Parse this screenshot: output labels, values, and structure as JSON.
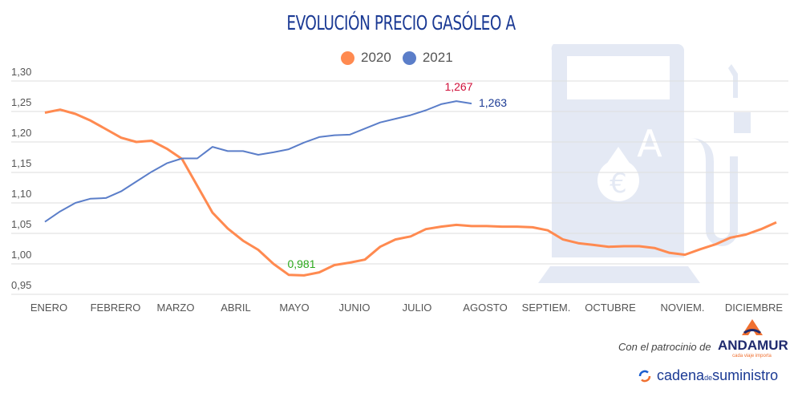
{
  "chart_data": {
    "type": "line",
    "title": "EVOLUCIÓN PRECIO GASÓLEO A",
    "x_tick_labels": [
      "ENERO",
      "FEBRERO",
      "MARZO",
      "ABRIL",
      "MAYO",
      "JUNIO",
      "JULIO",
      "AGOSTO",
      "SEPTIEM.",
      "OCTUBRE",
      "NOVIEM.",
      "DICIEMBRE"
    ],
    "y_tick_labels": [
      "1,30",
      "1,25",
      "1,20",
      "1,15",
      "1,10",
      "1,05",
      "1,00",
      "0,95"
    ],
    "ylim": [
      0.95,
      1.3
    ],
    "grid": true,
    "legend_position": "top-center",
    "series": [
      {
        "name": "2020",
        "color": "#ff8a50",
        "values": [
          1.248,
          1.253,
          1.246,
          1.235,
          1.221,
          1.207,
          1.2,
          1.202,
          1.189,
          1.172,
          1.128,
          1.084,
          1.058,
          1.038,
          1.023,
          1.0,
          0.982,
          0.981,
          0.986,
          0.998,
          1.002,
          1.007,
          1.028,
          1.04,
          1.045,
          1.057,
          1.061,
          1.064,
          1.062,
          1.062,
          1.061,
          1.061,
          1.06,
          1.055,
          1.04,
          1.034,
          1.031,
          1.028,
          1.029,
          1.029,
          1.026,
          1.018,
          1.015,
          1.024,
          1.032,
          1.043,
          1.048,
          1.057,
          1.068
        ]
      },
      {
        "name": "2021",
        "color": "#5b7ec9",
        "values": [
          1.069,
          1.086,
          1.1,
          1.107,
          1.108,
          1.119,
          1.135,
          1.151,
          1.165,
          1.173,
          1.173,
          1.192,
          1.185,
          1.185,
          1.179,
          1.183,
          1.188,
          1.199,
          1.208,
          1.211,
          1.212,
          1.222,
          1.232,
          1.238,
          1.244,
          1.252,
          1.262,
          1.267,
          1.263
        ]
      }
    ],
    "annotations": [
      {
        "text": "1,267",
        "color": "#d0103a"
      },
      {
        "text": "1,263",
        "color": "#1b3a94"
      },
      {
        "text": "0,981",
        "color": "#2aa81a"
      }
    ]
  },
  "footer": {
    "sponsor_text": "Con el patrocinio de",
    "sponsor_name": "ANDAMUR",
    "sponsor_tagline": "cada viaje importa",
    "publisher_main": "cadena",
    "publisher_de": "de",
    "publisher_end": "suministro"
  }
}
